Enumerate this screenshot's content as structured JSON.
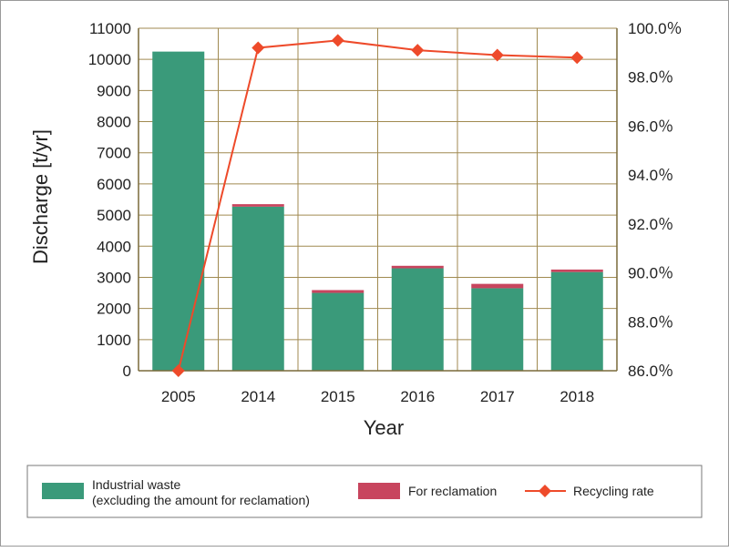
{
  "chart_data": {
    "type": "bar",
    "categories": [
      "2005",
      "2014",
      "2015",
      "2016",
      "2017",
      "2018"
    ],
    "xlabel": "Year",
    "ylabel": "Discharge [t/yr]",
    "ylim": [
      0,
      11000
    ],
    "y_ticks": [
      "0",
      "1000",
      "2000",
      "3000",
      "4000",
      "5000",
      "6000",
      "7000",
      "8000",
      "9000",
      "10000",
      "11000"
    ],
    "y2lim": [
      86.0,
      100.0
    ],
    "y2_ticks": [
      "86.0％",
      "88.0％",
      "90.0％",
      "92.0％",
      "94.0％",
      "96.0％",
      "98.0％",
      "100.0％"
    ],
    "stacked": true,
    "grid": true,
    "legend_position": "bottom",
    "series": [
      {
        "name": "Industrial waste\n(excluding the amount for reclamation)",
        "kind": "bar",
        "axis": "left",
        "color": "#3a9a7a",
        "values": [
          10250,
          5270,
          2500,
          3290,
          2650,
          3170
        ]
      },
      {
        "name": "For reclamation",
        "kind": "bar",
        "axis": "left",
        "color": "#c8455e",
        "values": [
          0,
          80,
          90,
          80,
          140,
          80
        ]
      },
      {
        "name": "Recycling rate",
        "kind": "line",
        "axis": "right",
        "color": "#ee4a2a",
        "marker": "diamond",
        "values": [
          86.0,
          99.2,
          99.5,
          99.1,
          98.9,
          98.8
        ]
      }
    ]
  }
}
